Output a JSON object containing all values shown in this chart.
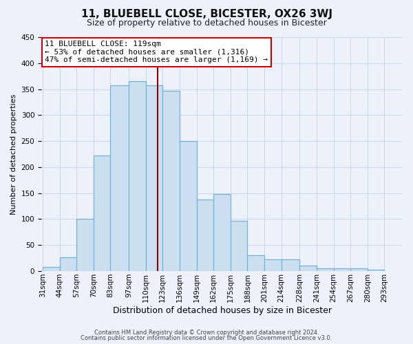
{
  "title": "11, BLUEBELL CLOSE, BICESTER, OX26 3WJ",
  "subtitle": "Size of property relative to detached houses in Bicester",
  "xlabel": "Distribution of detached houses by size in Bicester",
  "ylabel": "Number of detached properties",
  "bin_labels": [
    "31sqm",
    "44sqm",
    "57sqm",
    "70sqm",
    "83sqm",
    "97sqm",
    "110sqm",
    "123sqm",
    "136sqm",
    "149sqm",
    "162sqm",
    "175sqm",
    "188sqm",
    "201sqm",
    "214sqm",
    "228sqm",
    "241sqm",
    "254sqm",
    "267sqm",
    "280sqm",
    "293sqm"
  ],
  "bin_edges": [
    31,
    44,
    57,
    70,
    83,
    97,
    110,
    123,
    136,
    149,
    162,
    175,
    188,
    201,
    214,
    228,
    241,
    254,
    267,
    280,
    293
  ],
  "counts": [
    8,
    27,
    100,
    222,
    358,
    365,
    358,
    347,
    250,
    138,
    148,
    97,
    30,
    22,
    22,
    10,
    6,
    5,
    5,
    3
  ],
  "property_size": 119,
  "bar_face_color": "#ccdff0",
  "bar_edge_color": "#6aaed6",
  "vline_color": "#8b0000",
  "grid_color": "#c8d8e8",
  "background_color": "#edf2fa",
  "annotation_box_color": "#ffffff",
  "annotation_box_edge": "#cc0000",
  "annotation_title": "11 BLUEBELL CLOSE: 119sqm",
  "annotation_line1": "← 53% of detached houses are smaller (1,316)",
  "annotation_line2": "47% of semi-detached houses are larger (1,169) →",
  "ylim": [
    0,
    450
  ],
  "yticks": [
    0,
    50,
    100,
    150,
    200,
    250,
    300,
    350,
    400,
    450
  ],
  "footer1": "Contains HM Land Registry data © Crown copyright and database right 2024.",
  "footer2": "Contains public sector information licensed under the Open Government Licence v3.0.",
  "title_fontsize": 11,
  "subtitle_fontsize": 9,
  "ylabel_fontsize": 8,
  "xlabel_fontsize": 9,
  "tick_fontsize": 7.5,
  "footer_fontsize": 6,
  "annot_fontsize": 8
}
